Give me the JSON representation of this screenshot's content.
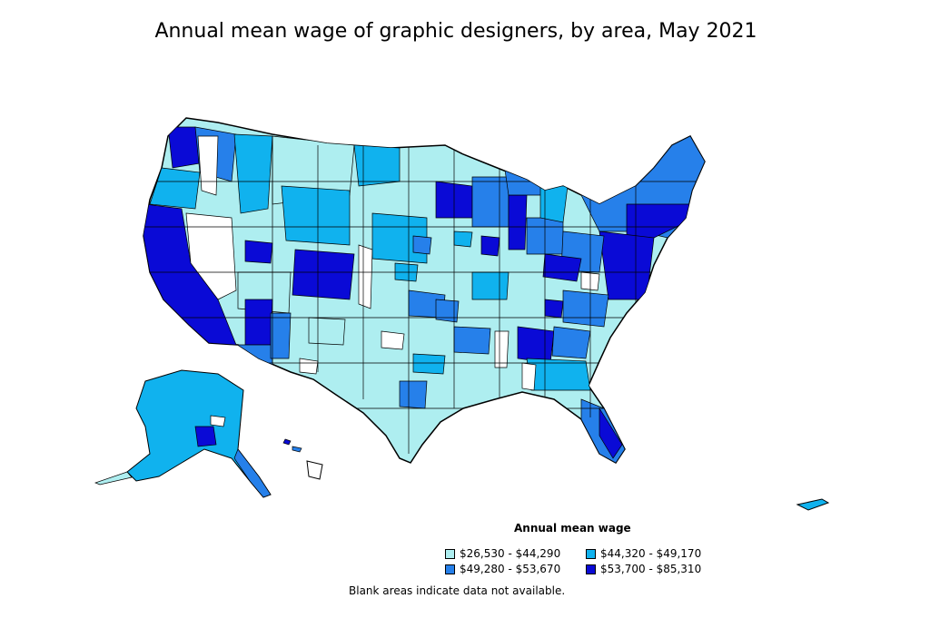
{
  "title": "Annual mean wage of graphic designers, by area, May 2021",
  "legend": {
    "title": "Annual mean wage",
    "items": [
      {
        "label": "$26,530 - $44,290",
        "color": "#aeeef0"
      },
      {
        "label": "$44,320 - $49,170",
        "color": "#10b2ee"
      },
      {
        "label": "$49,280 - $53,670",
        "color": "#2680ea"
      },
      {
        "label": "$53,700 - $85,310",
        "color": "#0a0ad6"
      }
    ]
  },
  "note": "Blank areas indicate data not available."
}
